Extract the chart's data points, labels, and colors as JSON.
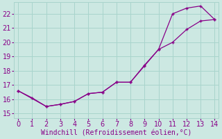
{
  "xlabel": "Windchill (Refroidissement éolien,°C)",
  "background_color": "#cce8e2",
  "grid_color": "#a8d4cc",
  "line_color": "#880088",
  "line1_x": [
    0,
    1,
    2,
    3,
    4,
    5,
    6,
    7,
    8,
    9,
    10,
    11,
    12,
    13,
    14
  ],
  "line1_y": [
    16.6,
    16.1,
    15.5,
    15.65,
    15.85,
    16.4,
    16.5,
    17.2,
    17.2,
    18.4,
    19.5,
    22.0,
    22.4,
    22.55,
    21.6
  ],
  "line2_x": [
    0,
    2,
    3,
    4,
    5,
    6,
    7,
    8,
    9,
    10,
    11,
    12,
    13,
    14
  ],
  "line2_y": [
    16.6,
    15.5,
    15.65,
    15.85,
    16.4,
    16.5,
    17.2,
    17.2,
    18.35,
    19.5,
    20.0,
    20.9,
    21.5,
    21.6
  ],
  "xlim": [
    -0.3,
    14.3
  ],
  "ylim": [
    14.7,
    22.8
  ],
  "yticks": [
    15,
    16,
    17,
    18,
    19,
    20,
    21,
    22
  ],
  "xticks": [
    0,
    1,
    2,
    3,
    4,
    5,
    6,
    7,
    8,
    9,
    10,
    11,
    12,
    13,
    14
  ],
  "tick_fontsize": 7,
  "xlabel_fontsize": 7
}
